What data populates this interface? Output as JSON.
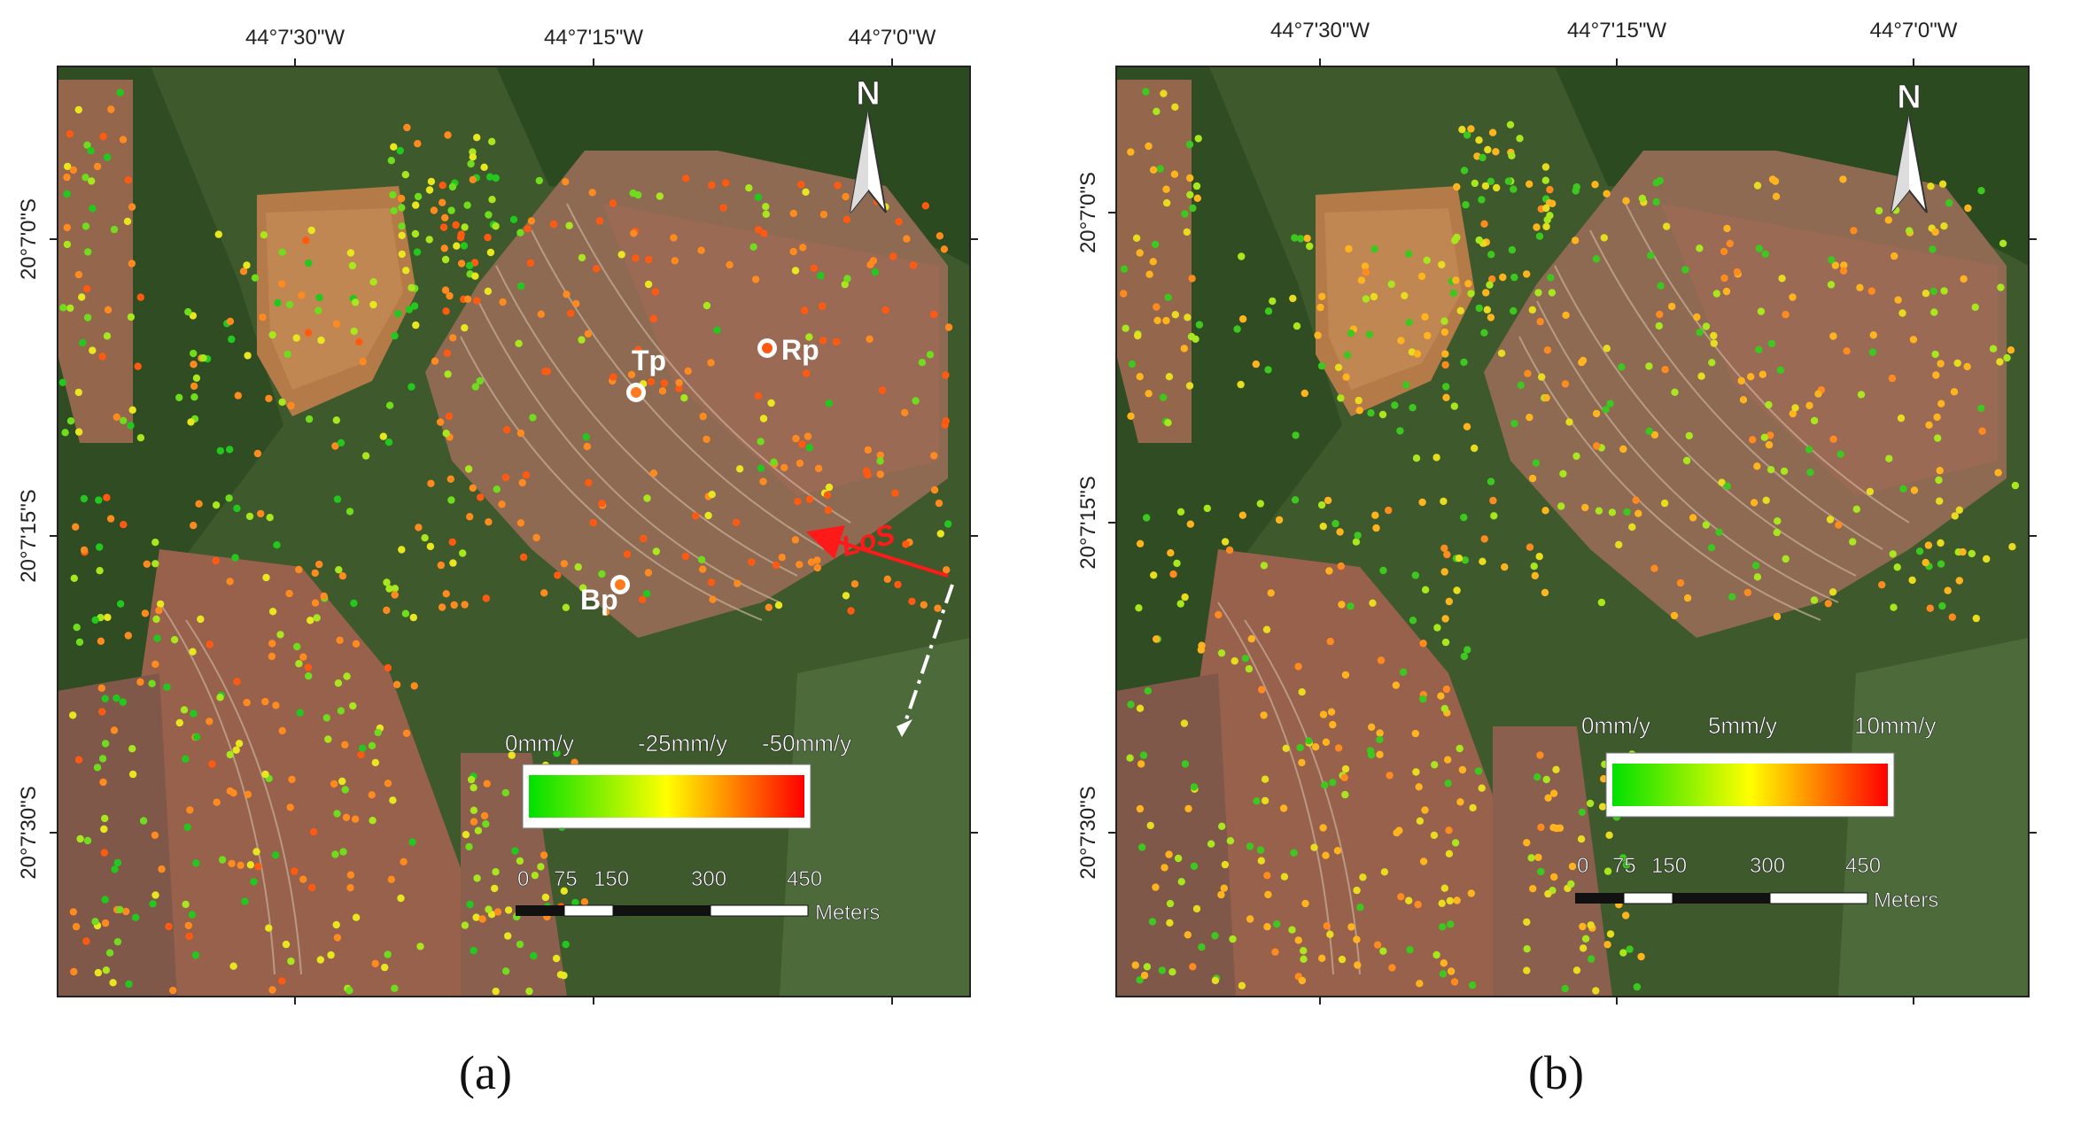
{
  "figure": {
    "panel_labels": [
      "(a)",
      "(b)"
    ]
  },
  "panels": [
    {
      "id": "a",
      "top_ticks": [
        "44°7'30\"W",
        "44°7'15\"W",
        "44°7'0\"W"
      ],
      "left_ticks": [
        "20°7'0\"S",
        "20°7'15\"S",
        "20°7'30\"S"
      ],
      "north": "N",
      "legend": {
        "labels": [
          "0mm/y",
          "-25mm/y",
          "-50mm/y"
        ],
        "colors": [
          "#00e000",
          "#ffff00",
          "#ff0000"
        ]
      },
      "scale": {
        "ticks": [
          "0",
          "75",
          "150",
          "300",
          "450"
        ],
        "unit": "Meters"
      },
      "markers": [
        {
          "label": "Tp",
          "color": "#ffffff"
        },
        {
          "label": "Rp",
          "color": "#ffffff"
        },
        {
          "label": "Bp",
          "color": "#ffffff"
        }
      ],
      "los": "LoS",
      "point_palette": [
        "#22c81e",
        "#6fdc1e",
        "#a8e61e",
        "#e8e61e",
        "#ff8a1e",
        "#ff5a10"
      ]
    },
    {
      "id": "b",
      "top_ticks": [
        "44°7'30\"W",
        "44°7'15\"W",
        "44°7'0\"W"
      ],
      "left_ticks": [
        "20°7'0\"S",
        "20°7'15\"S",
        "20°7'30\"S"
      ],
      "north": "N",
      "legend": {
        "labels": [
          "0mm/y",
          "5mm/y",
          "10mm/y"
        ],
        "colors": [
          "#00e000",
          "#ffff00",
          "#ff0000"
        ]
      },
      "scale": {
        "ticks": [
          "0",
          "75",
          "150",
          "300",
          "450"
        ],
        "unit": "Meters"
      },
      "point_palette": [
        "#3cc81e",
        "#a8e61e",
        "#e8dc1e",
        "#ffb41e",
        "#ff8a1e"
      ]
    }
  ]
}
